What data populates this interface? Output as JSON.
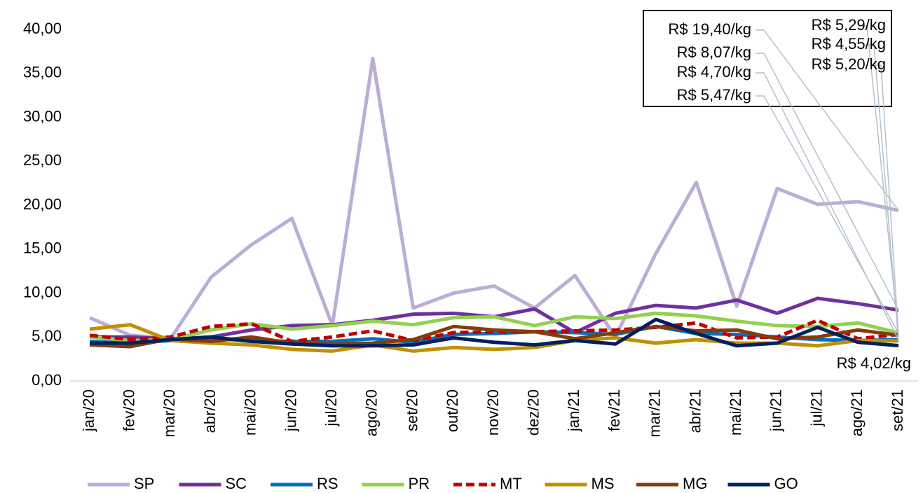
{
  "chart_data": {
    "type": "line",
    "categories": [
      "jan/20",
      "fev/20",
      "mar/20",
      "abr/20",
      "mai/20",
      "jun/20",
      "jul/20",
      "ago/20",
      "set/20",
      "out/20",
      "nov/20",
      "dez/20",
      "jan/21",
      "fev/21",
      "mar/21",
      "abr/21",
      "mai/21",
      "jun/21",
      "jul/21",
      "ago/21",
      "set/21"
    ],
    "ylim": [
      0,
      40
    ],
    "yticks": [
      {
        "value": 0,
        "label": "0,00"
      },
      {
        "value": 5,
        "label": "5,00"
      },
      {
        "value": 10,
        "label": "10,00"
      },
      {
        "value": 15,
        "label": "15,00"
      },
      {
        "value": 20,
        "label": "20,00"
      },
      {
        "value": 25,
        "label": "25,00"
      },
      {
        "value": 30,
        "label": "30,00"
      },
      {
        "value": 35,
        "label": "35,00"
      },
      {
        "value": 40,
        "label": "40,00"
      }
    ],
    "legend": "bottom",
    "series": [
      {
        "name": "SP",
        "color": "#bcadd6",
        "values": [
          7.2,
          5.2,
          4.8,
          11.8,
          15.5,
          18.5,
          6.3,
          36.7,
          8.3,
          10.0,
          10.8,
          8.3,
          12.0,
          5.0,
          14.5,
          22.6,
          8.5,
          21.9,
          20.1,
          20.4,
          19.4
        ],
        "value_labels": [
          null,
          null,
          null,
          null,
          null,
          null,
          null,
          null,
          null,
          null,
          null,
          null,
          null,
          null,
          null,
          null,
          null,
          null,
          null,
          null,
          "R$ 19,40/kg"
        ]
      },
      {
        "name": "SC",
        "color": "#7030a0",
        "values": [
          5.0,
          5.0,
          4.8,
          5.0,
          5.8,
          6.3,
          6.4,
          6.9,
          7.6,
          7.7,
          7.3,
          8.2,
          5.5,
          7.7,
          8.6,
          8.3,
          9.2,
          7.7,
          9.4,
          8.8,
          8.07
        ],
        "value_labels": [
          null,
          null,
          null,
          null,
          null,
          null,
          null,
          null,
          null,
          null,
          null,
          null,
          null,
          null,
          null,
          null,
          null,
          null,
          null,
          null,
          "R$ 8,07/kg"
        ]
      },
      {
        "name": "RS",
        "color": "#0070c0",
        "values": [
          4.5,
          4.3,
          4.6,
          4.8,
          4.6,
          4.5,
          4.5,
          4.8,
          4.4,
          5.3,
          5.4,
          5.6,
          5.5,
          5.3,
          6.2,
          5.4,
          5.3,
          5.0,
          4.7,
          4.6,
          4.7
        ],
        "value_labels": [
          null,
          null,
          null,
          null,
          null,
          null,
          null,
          null,
          null,
          null,
          null,
          null,
          null,
          null,
          null,
          null,
          null,
          null,
          null,
          null,
          "R$ 4,70/kg"
        ]
      },
      {
        "name": "PR",
        "color": "#92d050",
        "values": [
          5.0,
          4.6,
          4.7,
          5.8,
          6.5,
          5.9,
          6.3,
          6.8,
          6.4,
          7.2,
          7.3,
          6.3,
          7.3,
          7.1,
          7.7,
          7.4,
          6.8,
          6.3,
          6.2,
          6.6,
          5.47
        ],
        "value_labels": [
          null,
          null,
          null,
          null,
          null,
          null,
          null,
          null,
          null,
          null,
          null,
          null,
          null,
          null,
          null,
          null,
          null,
          null,
          null,
          null,
          "R$ 5,47/kg"
        ]
      },
      {
        "name": "MT",
        "color": "#c00000",
        "dashed": true,
        "values": [
          5.2,
          4.7,
          5.0,
          6.2,
          6.5,
          4.5,
          5.0,
          5.7,
          4.6,
          5.5,
          5.6,
          5.6,
          5.7,
          5.8,
          6.1,
          6.6,
          4.9,
          5.0,
          6.9,
          4.8,
          5.29
        ],
        "value_labels": [
          null,
          null,
          null,
          null,
          null,
          null,
          null,
          null,
          null,
          null,
          null,
          null,
          null,
          null,
          null,
          null,
          null,
          null,
          null,
          null,
          "R$ 5,29/kg"
        ]
      },
      {
        "name": "MS",
        "color": "#bf9000",
        "values": [
          5.9,
          6.4,
          4.6,
          4.3,
          4.1,
          3.6,
          3.4,
          4.1,
          3.4,
          3.8,
          3.6,
          3.8,
          4.6,
          4.9,
          4.3,
          4.7,
          4.3,
          4.3,
          4.0,
          4.6,
          4.55
        ],
        "value_labels": [
          null,
          null,
          null,
          null,
          null,
          null,
          null,
          null,
          null,
          null,
          null,
          null,
          null,
          null,
          null,
          null,
          null,
          null,
          null,
          null,
          "R$ 4,55/kg"
        ]
      },
      {
        "name": "MG",
        "color": "#843c0c",
        "values": [
          4.1,
          3.9,
          4.8,
          4.5,
          5.0,
          4.3,
          4.2,
          4.3,
          4.7,
          6.2,
          5.8,
          5.6,
          4.8,
          5.5,
          6.2,
          5.7,
          5.8,
          4.8,
          5.0,
          5.8,
          5.2
        ],
        "value_labels": [
          null,
          null,
          null,
          null,
          null,
          null,
          null,
          null,
          null,
          null,
          null,
          null,
          null,
          null,
          null,
          null,
          null,
          null,
          null,
          null,
          "R$ 5,20/kg"
        ]
      },
      {
        "name": "GO",
        "color": "#002060",
        "values": [
          4.3,
          4.3,
          4.7,
          5.0,
          4.5,
          4.2,
          4.0,
          4.0,
          4.1,
          4.9,
          4.4,
          4.1,
          4.6,
          4.2,
          7.0,
          5.4,
          4.0,
          4.3,
          6.1,
          4.4,
          4.02
        ],
        "value_labels": [
          null,
          null,
          null,
          null,
          null,
          null,
          null,
          null,
          null,
          null,
          null,
          null,
          null,
          null,
          null,
          null,
          null,
          null,
          null,
          null,
          "R$ 4,02/kg"
        ]
      }
    ]
  }
}
